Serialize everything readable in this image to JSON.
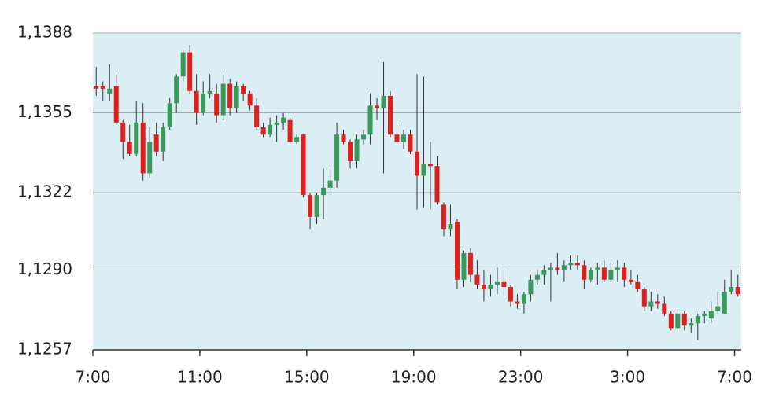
{
  "chart_data": {
    "type": "candlestick",
    "x": [
      0.125,
      0.375,
      0.625,
      0.875,
      1.125,
      1.375,
      1.625,
      1.875,
      2.125,
      2.375,
      2.625,
      2.875,
      3.125,
      3.375,
      3.625,
      3.875,
      4.125,
      4.375,
      4.625,
      4.875,
      5.125,
      5.375,
      5.625,
      5.875,
      6.125,
      6.375,
      6.625,
      6.875,
      7.125,
      7.375,
      7.625,
      7.875,
      8.125,
      8.375,
      8.625,
      8.875,
      9.125,
      9.375,
      9.625,
      9.875,
      10.125,
      10.375,
      10.625,
      10.875,
      11.125,
      11.375,
      11.625,
      11.875,
      12.125,
      12.375,
      12.625,
      12.875,
      13.125,
      13.375,
      13.625,
      13.875,
      14.125,
      14.375,
      14.625,
      14.875,
      15.125,
      15.375,
      15.625,
      15.875,
      16.125,
      16.375,
      16.625,
      16.875,
      17.125,
      17.375,
      17.625,
      17.875,
      18.125,
      18.375,
      18.625,
      18.875,
      19.125,
      19.375,
      19.625,
      19.875,
      20.125,
      20.375,
      20.625,
      20.875,
      21.125,
      21.375,
      21.625,
      21.875,
      22.125,
      22.375,
      22.625,
      22.875,
      23.125,
      23.375,
      23.625,
      23.875,
      24.125
    ],
    "open": [
      1.1366,
      1.1366,
      1.1363,
      1.1366,
      1.1351,
      1.1343,
      1.1338,
      1.1351,
      1.133,
      1.1346,
      1.1339,
      1.1349,
      1.1359,
      1.137,
      1.138,
      1.1364,
      1.1355,
      1.1363,
      1.1363,
      1.1354,
      1.1367,
      1.1357,
      1.1366,
      1.1363,
      1.1358,
      1.1349,
      1.1346,
      1.135,
      1.1351,
      1.1352,
      1.1343,
      1.1346,
      1.1321,
      1.1312,
      1.1321,
      1.1324,
      1.1327,
      1.1346,
      1.1343,
      1.1335,
      1.1344,
      1.1346,
      1.1358,
      1.1357,
      1.1362,
      1.1346,
      1.1343,
      1.1346,
      1.1339,
      1.1329,
      1.1334,
      1.1333,
      1.1317,
      1.1307,
      1.131,
      1.1286,
      1.1297,
      1.1288,
      1.1284,
      1.1282,
      1.1284,
      1.1285,
      1.1283,
      1.1277,
      1.1276,
      1.128,
      1.1286,
      1.1288,
      1.129,
      1.1291,
      1.129,
      1.1292,
      1.1293,
      1.1292,
      1.1286,
      1.129,
      1.1291,
      1.1286,
      1.129,
      1.1291,
      1.1286,
      1.1285,
      1.1282,
      1.1275,
      1.1277,
      1.1276,
      1.1272,
      1.1266,
      1.1272,
      1.1267,
      1.1268,
      1.1271,
      1.127,
      1.1273,
      1.1272,
      1.1281,
      1.1283
    ],
    "high": [
      1.1374,
      1.1368,
      1.1375,
      1.1371,
      1.1352,
      1.135,
      1.136,
      1.1359,
      1.1349,
      1.1351,
      1.1351,
      1.1361,
      1.1371,
      1.1381,
      1.1383,
      1.1371,
      1.1368,
      1.1371,
      1.1367,
      1.1371,
      1.1369,
      1.1368,
      1.1367,
      1.1364,
      1.1361,
      1.1351,
      1.1353,
      1.1354,
      1.1355,
      1.1353,
      1.1346,
      1.1346,
      1.1322,
      1.1322,
      1.1332,
      1.1332,
      1.1351,
      1.1348,
      1.1344,
      1.1346,
      1.1348,
      1.1363,
      1.1361,
      1.1376,
      1.1364,
      1.135,
      1.1348,
      1.1348,
      1.1371,
      1.137,
      1.1343,
      1.1337,
      1.1318,
      1.1317,
      1.1311,
      1.1298,
      1.1299,
      1.1294,
      1.129,
      1.1288,
      1.1291,
      1.129,
      1.1284,
      1.128,
      1.1281,
      1.1288,
      1.129,
      1.1292,
      1.1293,
      1.1297,
      1.1294,
      1.1296,
      1.1296,
      1.1294,
      1.1291,
      1.1293,
      1.1294,
      1.1293,
      1.1294,
      1.1293,
      1.129,
      1.1288,
      1.1283,
      1.1281,
      1.128,
      1.1279,
      1.1273,
      1.1273,
      1.1273,
      1.127,
      1.1272,
      1.1273,
      1.1277,
      1.1281,
      1.1286,
      1.129,
      1.1288
    ],
    "low": [
      1.1362,
      1.136,
      1.136,
      1.135,
      1.1336,
      1.1337,
      1.1337,
      1.1327,
      1.1328,
      1.1337,
      1.1335,
      1.1348,
      1.1355,
      1.1368,
      1.1363,
      1.135,
      1.1354,
      1.1361,
      1.1351,
      1.1352,
      1.1354,
      1.1355,
      1.136,
      1.1356,
      1.1348,
      1.1345,
      1.1345,
      1.1343,
      1.1348,
      1.1342,
      1.1342,
      1.132,
      1.1307,
      1.1309,
      1.1311,
      1.1322,
      1.1324,
      1.1342,
      1.1332,
      1.1332,
      1.1342,
      1.1342,
      1.1352,
      1.133,
      1.1345,
      1.1342,
      1.134,
      1.1338,
      1.1315,
      1.1316,
      1.1315,
      1.1317,
      1.1304,
      1.1304,
      1.1282,
      1.1283,
      1.1285,
      1.1282,
      1.1277,
      1.1279,
      1.128,
      1.1279,
      1.1275,
      1.1274,
      1.1272,
      1.1277,
      1.1284,
      1.1284,
      1.1277,
      1.1288,
      1.1285,
      1.129,
      1.129,
      1.1282,
      1.1285,
      1.1284,
      1.1285,
      1.1285,
      1.1285,
      1.1283,
      1.1284,
      1.1281,
      1.1273,
      1.1273,
      1.1274,
      1.1271,
      1.1265,
      1.1265,
      1.1265,
      1.1264,
      1.1261,
      1.1268,
      1.1268,
      1.1272,
      1.1272,
      1.128,
      1.1279
    ],
    "close": [
      1.1365,
      1.1365,
      1.1365,
      1.1351,
      1.1343,
      1.1338,
      1.1351,
      1.133,
      1.1343,
      1.1339,
      1.1349,
      1.1359,
      1.137,
      1.138,
      1.1364,
      1.1355,
      1.1363,
      1.1364,
      1.1354,
      1.1367,
      1.1357,
      1.1366,
      1.1363,
      1.1358,
      1.1349,
      1.1346,
      1.135,
      1.1351,
      1.1353,
      1.1343,
      1.1345,
      1.1321,
      1.1312,
      1.1321,
      1.1324,
      1.1327,
      1.1346,
      1.1343,
      1.1335,
      1.1344,
      1.1346,
      1.1358,
      1.1357,
      1.1362,
      1.1346,
      1.1343,
      1.1346,
      1.1339,
      1.1329,
      1.1334,
      1.1333,
      1.1318,
      1.1307,
      1.1309,
      1.1286,
      1.1297,
      1.1288,
      1.1284,
      1.1282,
      1.1284,
      1.1285,
      1.1283,
      1.1277,
      1.1276,
      1.128,
      1.1286,
      1.1288,
      1.129,
      1.1291,
      1.129,
      1.1292,
      1.1293,
      1.1292,
      1.1286,
      1.129,
      1.1291,
      1.1286,
      1.129,
      1.1291,
      1.1286,
      1.1285,
      1.1282,
      1.1275,
      1.1277,
      1.1276,
      1.1272,
      1.1266,
      1.1272,
      1.1267,
      1.1268,
      1.1271,
      1.1272,
      1.1273,
      1.1275,
      1.1281,
      1.1283,
      1.128
    ],
    "up_color": "#3a9a5c",
    "down_color": "#e0201c",
    "wick_color": "#333333",
    "xlim": [
      0,
      24.25
    ],
    "xticks": [
      {
        "value": 0,
        "label": "7:00"
      },
      {
        "value": 4,
        "label": "11:00"
      },
      {
        "value": 8,
        "label": "15:00"
      },
      {
        "value": 12,
        "label": "19:00"
      },
      {
        "value": 16,
        "label": "23:00"
      },
      {
        "value": 20,
        "label": "3:00"
      },
      {
        "value": 24,
        "label": "7:00"
      }
    ],
    "ylim": [
      1.1257,
      1.1388
    ],
    "yticks": [
      {
        "value": 1.1257,
        "label": "1,1257"
      },
      {
        "value": 1.129,
        "label": "1,1290"
      },
      {
        "value": 1.1322,
        "label": "1,1322"
      },
      {
        "value": 1.1355,
        "label": "1,1355"
      },
      {
        "value": 1.1388,
        "label": "1,1388"
      }
    ],
    "grid": true,
    "background": "#daeef3"
  }
}
